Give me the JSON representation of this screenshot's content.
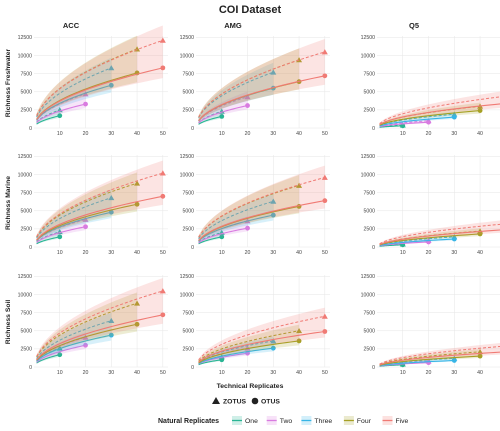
{
  "title": "COI Dataset",
  "facet_columns": [
    "ACC",
    "AMG",
    "Q5"
  ],
  "facet_rows": [
    "Richness Freshwater",
    "Richness Marine",
    "Richness Soil"
  ],
  "x_axis_title": "Technical Replicates",
  "legend": {
    "shape_items": [
      {
        "label": "ZOTUS",
        "shape": "triangle"
      },
      {
        "label": "OTUS",
        "shape": "circle"
      }
    ],
    "color_title": "Natural Replicates",
    "color_items": [
      {
        "label": "One",
        "color": "#2ab594"
      },
      {
        "label": "Two",
        "color": "#d97be0"
      },
      {
        "label": "Three",
        "color": "#37b5e6"
      },
      {
        "label": "Four",
        "color": "#a6a024"
      },
      {
        "label": "Five",
        "color": "#f07a74"
      }
    ]
  },
  "chart_data": {
    "type": "line",
    "facet_grid": "3x3",
    "x_ticks": [
      10,
      20,
      30,
      40,
      50
    ],
    "xlim": [
      0,
      52
    ],
    "y_ticks": [
      0,
      2500,
      5000,
      7500,
      10000,
      12500
    ],
    "ylim": [
      0,
      12700
    ],
    "group_end_x": {
      "One": 10,
      "Two": 20,
      "Three": 30,
      "Four": 40,
      "Five": 50
    },
    "panels": [
      {
        "row": "Richness Freshwater",
        "col": "ACC",
        "ZOTUS_end": {
          "One": 2500,
          "Two": 4700,
          "Three": 8300,
          "Four": 10900,
          "Five": 12100
        },
        "OTUS_end": {
          "One": 1700,
          "Two": 3300,
          "Three": 5900,
          "Four": 7600,
          "Five": 8300
        }
      },
      {
        "row": "Richness Freshwater",
        "col": "AMG",
        "ZOTUS_end": {
          "One": 2300,
          "Two": 4300,
          "Three": 7700,
          "Four": 9400,
          "Five": 10500
        },
        "OTUS_end": {
          "One": 1600,
          "Two": 3100,
          "Three": 5500,
          "Four": 6400,
          "Five": 7200
        }
      },
      {
        "row": "Richness Freshwater",
        "col": "Q5",
        "ZOTUS_end": {
          "One": 400,
          "Two": 1000,
          "Three": 1900,
          "Four": 3000,
          "Five": 4400
        },
        "OTUS_end": {
          "One": 300,
          "Two": 800,
          "Three": 1500,
          "Four": 2400,
          "Five": 3400
        }
      },
      {
        "row": "Richness Marine",
        "col": "ACC",
        "ZOTUS_end": {
          "One": 2100,
          "Two": 3800,
          "Three": 6800,
          "Four": 8800,
          "Five": 10200
        },
        "OTUS_end": {
          "One": 1400,
          "Two": 2800,
          "Three": 4800,
          "Four": 5900,
          "Five": 7000
        }
      },
      {
        "row": "Richness Marine",
        "col": "AMG",
        "ZOTUS_end": {
          "One": 2000,
          "Two": 3600,
          "Three": 6300,
          "Four": 8500,
          "Five": 9600
        },
        "OTUS_end": {
          "One": 1400,
          "Two": 2600,
          "Three": 4400,
          "Four": 5600,
          "Five": 6400
        }
      },
      {
        "row": "Richness Marine",
        "col": "Q5",
        "ZOTUS_end": {
          "One": 400,
          "Two": 900,
          "Three": 1400,
          "Four": 2200,
          "Five": 3200
        },
        "OTUS_end": {
          "One": 300,
          "Two": 700,
          "Three": 1100,
          "Four": 1800,
          "Five": 2400
        }
      },
      {
        "row": "Richness Soil",
        "col": "ACC",
        "ZOTUS_end": {
          "One": 2600,
          "Two": 4100,
          "Three": 6400,
          "Four": 8800,
          "Five": 10500
        },
        "OTUS_end": {
          "One": 1700,
          "Two": 3000,
          "Three": 4400,
          "Four": 5900,
          "Five": 7200
        }
      },
      {
        "row": "Richness Soil",
        "col": "AMG",
        "ZOTUS_end": {
          "One": 1400,
          "Two": 2600,
          "Three": 3600,
          "Four": 5000,
          "Five": 7000
        },
        "OTUS_end": {
          "One": 1000,
          "Two": 1900,
          "Three": 2600,
          "Four": 3600,
          "Five": 4900
        }
      },
      {
        "row": "Richness Soil",
        "col": "Q5",
        "ZOTUS_end": {
          "One": 400,
          "Two": 800,
          "Three": 1200,
          "Four": 2100,
          "Five": 2900
        },
        "OTUS_end": {
          "One": 300,
          "Two": 600,
          "Three": 900,
          "Four": 1500,
          "Five": 2100
        }
      }
    ]
  }
}
